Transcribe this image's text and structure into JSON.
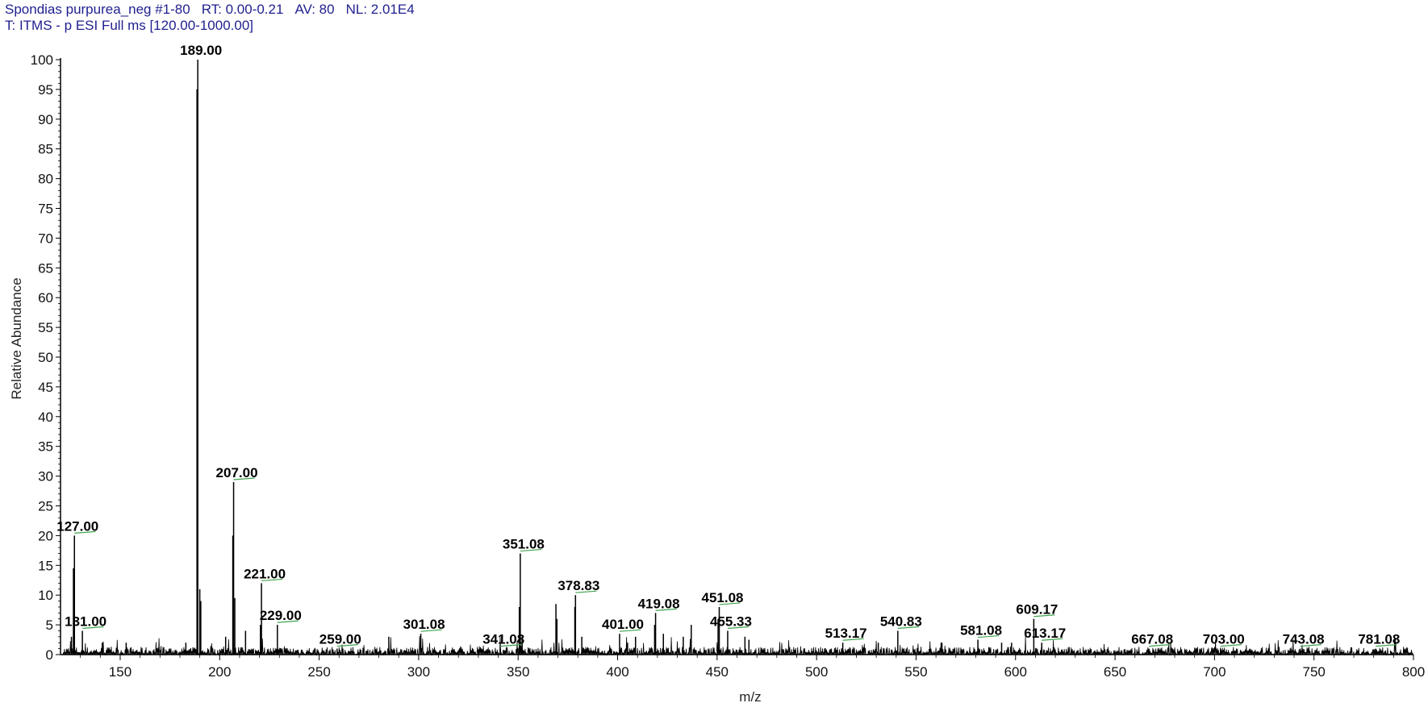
{
  "header": {
    "scan": "Spondias purpurea_neg #1-80",
    "rt": "RT: 0.00-0.21",
    "av": "AV: 80",
    "nl": "NL: 2.01E4",
    "filter": "T: ITMS - p ESI Full ms [120.00-1000.00]"
  },
  "chart_data": {
    "type": "line",
    "title": "",
    "xlabel": "m/z",
    "ylabel": "Relative Abundance",
    "xlim": [
      120,
      800
    ],
    "ylim": [
      0,
      100
    ],
    "x_ticks": [
      150,
      200,
      250,
      300,
      350,
      400,
      450,
      500,
      550,
      600,
      650,
      700,
      750,
      800
    ],
    "y_ticks": [
      0,
      5,
      10,
      15,
      20,
      25,
      30,
      35,
      40,
      45,
      50,
      55,
      60,
      65,
      70,
      75,
      80,
      85,
      90,
      95,
      100
    ],
    "labeled_peaks": [
      {
        "mz": 127.0,
        "label": "127.00",
        "intensity": 20
      },
      {
        "mz": 131.0,
        "label": "131.00",
        "intensity": 4
      },
      {
        "mz": 189.0,
        "label": "189.00",
        "intensity": 100
      },
      {
        "mz": 207.0,
        "label": "207.00",
        "intensity": 29
      },
      {
        "mz": 221.0,
        "label": "221.00",
        "intensity": 12
      },
      {
        "mz": 229.0,
        "label": "229.00",
        "intensity": 5
      },
      {
        "mz": 259.0,
        "label": "259.00",
        "intensity": 1
      },
      {
        "mz": 301.08,
        "label": "301.08",
        "intensity": 3.5
      },
      {
        "mz": 341.08,
        "label": "341.08",
        "intensity": 1
      },
      {
        "mz": 351.08,
        "label": "351.08",
        "intensity": 17
      },
      {
        "mz": 378.83,
        "label": "378.83",
        "intensity": 10
      },
      {
        "mz": 401.0,
        "label": "401.00",
        "intensity": 3.5
      },
      {
        "mz": 419.08,
        "label": "419.08",
        "intensity": 7
      },
      {
        "mz": 451.08,
        "label": "451.08",
        "intensity": 8
      },
      {
        "mz": 455.33,
        "label": "455.33",
        "intensity": 4
      },
      {
        "mz": 513.17,
        "label": "513.17",
        "intensity": 2
      },
      {
        "mz": 540.83,
        "label": "540.83",
        "intensity": 4
      },
      {
        "mz": 581.08,
        "label": "581.08",
        "intensity": 2.5
      },
      {
        "mz": 609.17,
        "label": "609.17",
        "intensity": 6
      },
      {
        "mz": 613.17,
        "label": "613.17",
        "intensity": 2
      },
      {
        "mz": 667.08,
        "label": "667.08",
        "intensity": 1
      },
      {
        "mz": 703.0,
        "label": "703.00",
        "intensity": 1
      },
      {
        "mz": 743.08,
        "label": "743.08",
        "intensity": 1
      },
      {
        "mz": 781.08,
        "label": "781.08",
        "intensity": 1
      }
    ],
    "other_peaks": [
      {
        "mz": 126.5,
        "intensity": 14.5
      },
      {
        "mz": 125.5,
        "intensity": 3
      },
      {
        "mz": 188.6,
        "intensity": 95
      },
      {
        "mz": 190.0,
        "intensity": 11
      },
      {
        "mz": 190.5,
        "intensity": 9
      },
      {
        "mz": 206.6,
        "intensity": 20
      },
      {
        "mz": 207.6,
        "intensity": 9.5
      },
      {
        "mz": 203.0,
        "intensity": 3
      },
      {
        "mz": 213.0,
        "intensity": 4
      },
      {
        "mz": 220.5,
        "intensity": 5
      },
      {
        "mz": 183.0,
        "intensity": 2
      },
      {
        "mz": 153.0,
        "intensity": 2
      },
      {
        "mz": 141.0,
        "intensity": 2
      },
      {
        "mz": 285.0,
        "intensity": 3
      },
      {
        "mz": 350.6,
        "intensity": 8
      },
      {
        "mz": 352.0,
        "intensity": 3
      },
      {
        "mz": 369.0,
        "intensity": 8.5
      },
      {
        "mz": 369.5,
        "intensity": 6
      },
      {
        "mz": 378.5,
        "intensity": 8
      },
      {
        "mz": 382.0,
        "intensity": 3
      },
      {
        "mz": 405.0,
        "intensity": 2
      },
      {
        "mz": 409.0,
        "intensity": 3
      },
      {
        "mz": 418.6,
        "intensity": 5
      },
      {
        "mz": 423.0,
        "intensity": 3.5
      },
      {
        "mz": 433.0,
        "intensity": 3
      },
      {
        "mz": 437.0,
        "intensity": 5
      },
      {
        "mz": 450.5,
        "intensity": 6
      },
      {
        "mz": 464.0,
        "intensity": 3
      },
      {
        "mz": 466.0,
        "intensity": 2.5
      },
      {
        "mz": 531.0,
        "intensity": 2
      },
      {
        "mz": 563.0,
        "intensity": 2
      },
      {
        "mz": 593.0,
        "intensity": 2
      },
      {
        "mz": 598.0,
        "intensity": 2
      }
    ]
  }
}
